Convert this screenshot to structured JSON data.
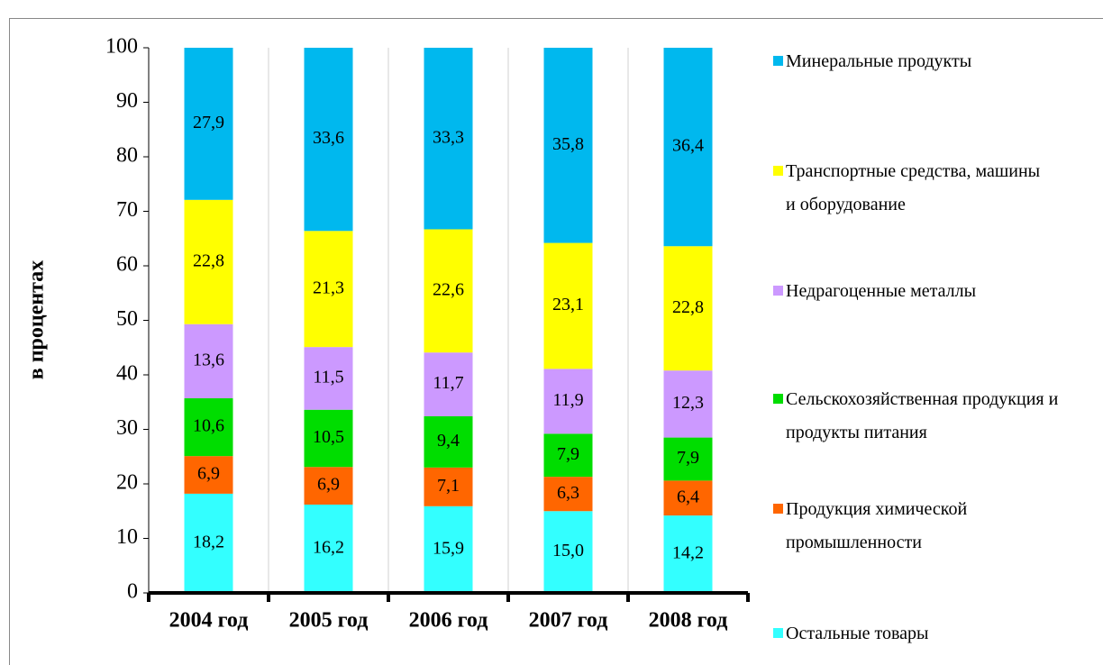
{
  "chart_data": {
    "type": "stacked_bar",
    "y_label": "в процентах",
    "categories": [
      "2004 год",
      "2005 год",
      "2006 год",
      "2007 год",
      "2008 год"
    ],
    "series": [
      {
        "name": "Остальные товары",
        "color": "#33ffff",
        "values": [
          18.2,
          16.2,
          15.9,
          15.0,
          14.2
        ],
        "value_labels": [
          "18,2",
          "16,2",
          "15,9",
          "15,0",
          "14,2"
        ]
      },
      {
        "name": "Продукция химической промышленности",
        "color": "#ff6600",
        "values": [
          6.9,
          6.9,
          7.1,
          6.3,
          6.4
        ],
        "value_labels": [
          "6,9",
          "6,9",
          "7,1",
          "6,3",
          "6,4"
        ]
      },
      {
        "name": "Сельскохозяйственная продукция и продукты питания",
        "color": "#00dd00",
        "values": [
          10.6,
          10.5,
          9.4,
          7.9,
          7.9
        ],
        "value_labels": [
          "10,6",
          "10,5",
          "9,4",
          "7,9",
          "7,9"
        ]
      },
      {
        "name": "Недрагоценные металлы",
        "color": "#cc99ff",
        "values": [
          13.6,
          11.5,
          11.7,
          11.9,
          12.3
        ],
        "value_labels": [
          "13,6",
          "11,5",
          "11,7",
          "11,9",
          "12,3"
        ]
      },
      {
        "name": "Транспортные средства, машины и оборудование",
        "color": "#ffff00",
        "values": [
          22.8,
          21.3,
          22.6,
          23.1,
          22.8
        ],
        "value_labels": [
          "22,8",
          "21,3",
          "22,6",
          "23,1",
          "22,8"
        ]
      },
      {
        "name": "Минеральные продукты",
        "color": "#00b8ee",
        "values": [
          27.9,
          33.6,
          33.3,
          35.8,
          36.4
        ],
        "value_labels": [
          "27,9",
          "33,6",
          "33,3",
          "35,8",
          "36,4"
        ]
      }
    ],
    "ylim": [
      0,
      100
    ],
    "yticks": [
      0,
      10,
      20,
      30,
      40,
      50,
      60,
      70,
      80,
      90,
      100
    ],
    "legend": "right"
  }
}
